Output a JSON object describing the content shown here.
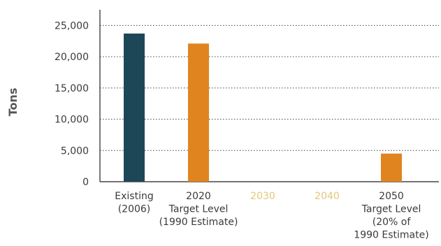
{
  "chart_data": {
    "type": "bar",
    "title": "",
    "xlabel": "",
    "ylabel": "Tons",
    "ylim": [
      0,
      27500
    ],
    "yticks": [
      "0",
      "5,000",
      "10,000",
      "15,000",
      "20,000",
      "25,000"
    ],
    "ytick_values": [
      0,
      5000,
      10000,
      15000,
      20000,
      25000
    ],
    "grid": true,
    "categories": [
      {
        "lines": [
          "Existing",
          "(2006)"
        ],
        "muted": false
      },
      {
        "lines": [
          "2020",
          "Target Level",
          "(1990 Estimate)"
        ],
        "muted": false
      },
      {
        "lines": [
          "2030"
        ],
        "muted": true
      },
      {
        "lines": [
          "2040"
        ],
        "muted": true
      },
      {
        "lines": [
          "2050",
          "Target Level",
          "(20% of",
          "1990 Estimate)"
        ],
        "muted": false
      }
    ],
    "values": [
      23700,
      22100,
      null,
      null,
      4500
    ],
    "colors": [
      "#1d4756",
      "#e08420",
      "#e08420",
      "#e08420",
      "#e08420"
    ],
    "muted_label_color": "#e2c77a"
  }
}
